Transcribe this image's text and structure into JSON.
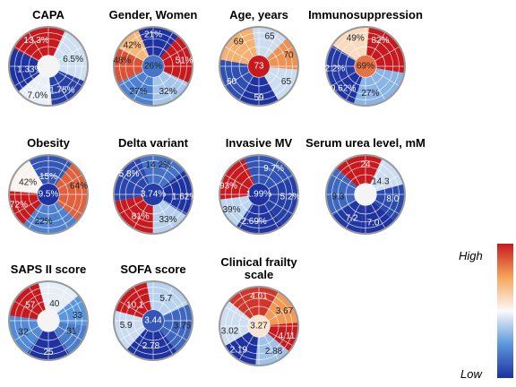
{
  "chart_data": [
    {
      "type": "polar-heatmap",
      "title": "CAPA",
      "values": [
        13.3,
        6.5,
        1.33,
        7.0,
        1.75
      ],
      "value_labels": [
        "13.3%",
        "6.5%",
        "1.33%",
        "7.0%",
        "1.75%"
      ]
    },
    {
      "type": "polar-heatmap",
      "title": "Gender, Women",
      "values": [
        21,
        42,
        51,
        48,
        26,
        27,
        32
      ],
      "value_labels": [
        "21%",
        "42%",
        "51%",
        "48%",
        "26%",
        "27%",
        "32%"
      ]
    },
    {
      "type": "polar-heatmap",
      "title": "Age, years",
      "values": [
        65,
        69,
        70,
        73,
        60,
        65,
        59
      ]
    },
    {
      "type": "polar-heatmap",
      "title": "Immunosuppression",
      "values": [
        49,
        82,
        2.2,
        69,
        0.62,
        27
      ],
      "value_labels": [
        "49%",
        "82%",
        "2.2%",
        "69%",
        "0.62%",
        "27%"
      ]
    },
    {
      "type": "polar-heatmap",
      "title": "Obesity",
      "values": [
        15,
        64,
        42,
        9.5,
        72,
        22
      ],
      "value_labels": [
        "15%",
        "64%",
        "42%",
        "9.5%",
        "72%",
        "22%"
      ]
    },
    {
      "type": "polar-heatmap",
      "title": "Delta variant",
      "values": [
        14.2,
        5.8,
        3.74,
        1.62,
        81,
        33
      ],
      "value_labels": [
        "14.2%",
        "5.8%",
        "3.74%",
        "1.62%",
        "81%",
        "33%"
      ]
    },
    {
      "type": "polar-heatmap",
      "title": "Invasive MV",
      "values": [
        9.7,
        93,
        5.2,
        1.99,
        39,
        2.69
      ],
      "value_labels": [
        "9.7%",
        "93%",
        "5.2%",
        "1.99%",
        "39%",
        "2.69%"
      ]
    },
    {
      "type": "polar-heatmap",
      "title": "Serum urea level, mM",
      "values": [
        24,
        14.3,
        9.3,
        8.0,
        7.2,
        7.0
      ],
      "value_labels": [
        "24",
        "14.3",
        "9.3",
        "8.0",
        "7.2",
        "7.0"
      ]
    },
    {
      "type": "polar-heatmap",
      "title": "SAPS II score",
      "values": [
        57,
        40,
        33,
        32,
        31,
        25
      ]
    },
    {
      "type": "polar-heatmap",
      "title": "SOFA score",
      "values": [
        10.1,
        5.7,
        5.9,
        3.75,
        3.44,
        2.78
      ]
    },
    {
      "type": "polar-heatmap",
      "title": "Clinical frailty scale",
      "values": [
        4.01,
        3.67,
        3.02,
        3.27,
        4.11,
        2.19,
        2.88
      ]
    }
  ],
  "colorbar": {
    "high": "High",
    "low": "Low"
  }
}
